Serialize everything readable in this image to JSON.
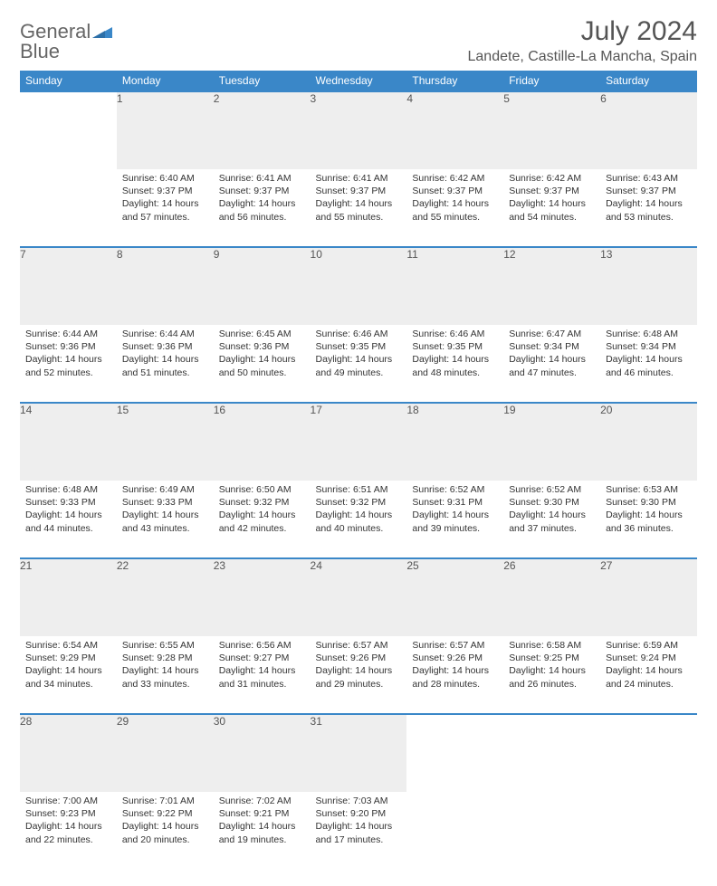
{
  "logo": {
    "line1": "General",
    "line2": "Blue"
  },
  "title": "July 2024",
  "location": "Landete, Castille-La Mancha, Spain",
  "colors": {
    "accent": "#3a87c8",
    "header_text": "#ffffff",
    "daynum_bg": "#eeeeee",
    "text": "#333333",
    "muted": "#555555"
  },
  "weekdays": [
    "Sunday",
    "Monday",
    "Tuesday",
    "Wednesday",
    "Thursday",
    "Friday",
    "Saturday"
  ],
  "weeks": [
    [
      null,
      {
        "n": "1",
        "sunrise": "6:40 AM",
        "sunset": "9:37 PM",
        "daylight": "14 hours and 57 minutes."
      },
      {
        "n": "2",
        "sunrise": "6:41 AM",
        "sunset": "9:37 PM",
        "daylight": "14 hours and 56 minutes."
      },
      {
        "n": "3",
        "sunrise": "6:41 AM",
        "sunset": "9:37 PM",
        "daylight": "14 hours and 55 minutes."
      },
      {
        "n": "4",
        "sunrise": "6:42 AM",
        "sunset": "9:37 PM",
        "daylight": "14 hours and 55 minutes."
      },
      {
        "n": "5",
        "sunrise": "6:42 AM",
        "sunset": "9:37 PM",
        "daylight": "14 hours and 54 minutes."
      },
      {
        "n": "6",
        "sunrise": "6:43 AM",
        "sunset": "9:37 PM",
        "daylight": "14 hours and 53 minutes."
      }
    ],
    [
      {
        "n": "7",
        "sunrise": "6:44 AM",
        "sunset": "9:36 PM",
        "daylight": "14 hours and 52 minutes."
      },
      {
        "n": "8",
        "sunrise": "6:44 AM",
        "sunset": "9:36 PM",
        "daylight": "14 hours and 51 minutes."
      },
      {
        "n": "9",
        "sunrise": "6:45 AM",
        "sunset": "9:36 PM",
        "daylight": "14 hours and 50 minutes."
      },
      {
        "n": "10",
        "sunrise": "6:46 AM",
        "sunset": "9:35 PM",
        "daylight": "14 hours and 49 minutes."
      },
      {
        "n": "11",
        "sunrise": "6:46 AM",
        "sunset": "9:35 PM",
        "daylight": "14 hours and 48 minutes."
      },
      {
        "n": "12",
        "sunrise": "6:47 AM",
        "sunset": "9:34 PM",
        "daylight": "14 hours and 47 minutes."
      },
      {
        "n": "13",
        "sunrise": "6:48 AM",
        "sunset": "9:34 PM",
        "daylight": "14 hours and 46 minutes."
      }
    ],
    [
      {
        "n": "14",
        "sunrise": "6:48 AM",
        "sunset": "9:33 PM",
        "daylight": "14 hours and 44 minutes."
      },
      {
        "n": "15",
        "sunrise": "6:49 AM",
        "sunset": "9:33 PM",
        "daylight": "14 hours and 43 minutes."
      },
      {
        "n": "16",
        "sunrise": "6:50 AM",
        "sunset": "9:32 PM",
        "daylight": "14 hours and 42 minutes."
      },
      {
        "n": "17",
        "sunrise": "6:51 AM",
        "sunset": "9:32 PM",
        "daylight": "14 hours and 40 minutes."
      },
      {
        "n": "18",
        "sunrise": "6:52 AM",
        "sunset": "9:31 PM",
        "daylight": "14 hours and 39 minutes."
      },
      {
        "n": "19",
        "sunrise": "6:52 AM",
        "sunset": "9:30 PM",
        "daylight": "14 hours and 37 minutes."
      },
      {
        "n": "20",
        "sunrise": "6:53 AM",
        "sunset": "9:30 PM",
        "daylight": "14 hours and 36 minutes."
      }
    ],
    [
      {
        "n": "21",
        "sunrise": "6:54 AM",
        "sunset": "9:29 PM",
        "daylight": "14 hours and 34 minutes."
      },
      {
        "n": "22",
        "sunrise": "6:55 AM",
        "sunset": "9:28 PM",
        "daylight": "14 hours and 33 minutes."
      },
      {
        "n": "23",
        "sunrise": "6:56 AM",
        "sunset": "9:27 PM",
        "daylight": "14 hours and 31 minutes."
      },
      {
        "n": "24",
        "sunrise": "6:57 AM",
        "sunset": "9:26 PM",
        "daylight": "14 hours and 29 minutes."
      },
      {
        "n": "25",
        "sunrise": "6:57 AM",
        "sunset": "9:26 PM",
        "daylight": "14 hours and 28 minutes."
      },
      {
        "n": "26",
        "sunrise": "6:58 AM",
        "sunset": "9:25 PM",
        "daylight": "14 hours and 26 minutes."
      },
      {
        "n": "27",
        "sunrise": "6:59 AM",
        "sunset": "9:24 PM",
        "daylight": "14 hours and 24 minutes."
      }
    ],
    [
      {
        "n": "28",
        "sunrise": "7:00 AM",
        "sunset": "9:23 PM",
        "daylight": "14 hours and 22 minutes."
      },
      {
        "n": "29",
        "sunrise": "7:01 AM",
        "sunset": "9:22 PM",
        "daylight": "14 hours and 20 minutes."
      },
      {
        "n": "30",
        "sunrise": "7:02 AM",
        "sunset": "9:21 PM",
        "daylight": "14 hours and 19 minutes."
      },
      {
        "n": "31",
        "sunrise": "7:03 AM",
        "sunset": "9:20 PM",
        "daylight": "14 hours and 17 minutes."
      },
      null,
      null,
      null
    ]
  ],
  "labels": {
    "sunrise": "Sunrise:",
    "sunset": "Sunset:",
    "daylight": "Daylight:"
  }
}
